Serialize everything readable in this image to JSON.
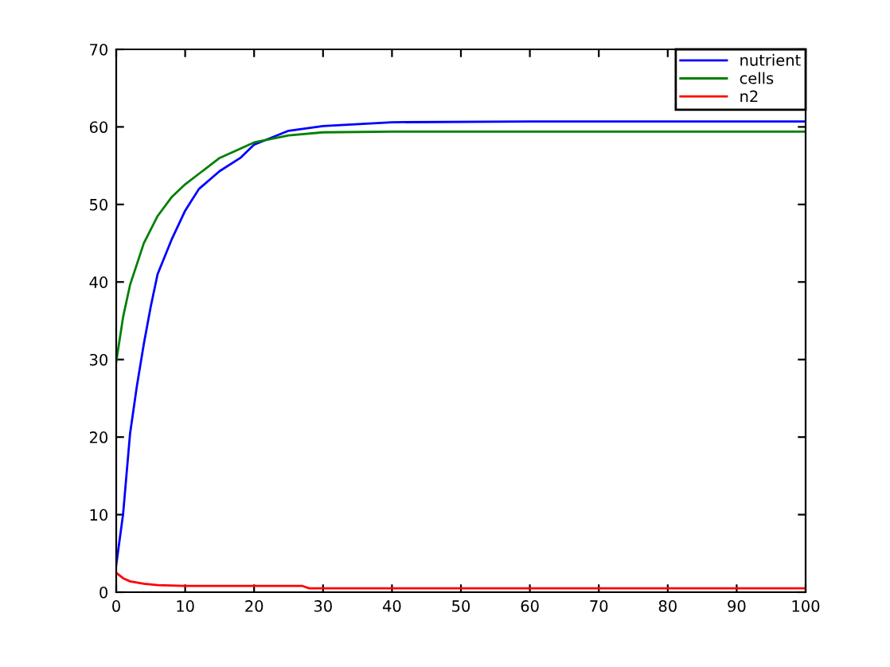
{
  "chart_data": {
    "type": "line",
    "xlim": [
      0,
      100
    ],
    "ylim": [
      0,
      70
    ],
    "xticks": [
      0,
      10,
      20,
      30,
      40,
      50,
      60,
      70,
      80,
      90,
      100
    ],
    "yticks": [
      0,
      10,
      20,
      30,
      40,
      50,
      60,
      70
    ],
    "grid": false,
    "legend": "top right",
    "series": [
      {
        "name": "nutrient",
        "color": "#0000ff",
        "x": [
          0,
          1,
          2,
          3,
          4,
          5,
          6,
          8,
          10,
          12,
          15,
          18,
          20,
          25,
          30,
          40,
          60,
          100
        ],
        "values": [
          3.5,
          10.1,
          20.4,
          26.6,
          32,
          36.8,
          41,
          45.4,
          49.2,
          52,
          54.3,
          56,
          57.7,
          59.5,
          60.1,
          60.6,
          60.7,
          60.7
        ]
      },
      {
        "name": "cells",
        "color": "#008000",
        "x": [
          0,
          1,
          2,
          3,
          4,
          6,
          8,
          10,
          15,
          20,
          25,
          30,
          40,
          100
        ],
        "values": [
          29.7,
          35.5,
          39.6,
          42.3,
          45,
          48.5,
          50.9,
          52.6,
          56,
          58,
          58.9,
          59.3,
          59.4,
          59.4
        ]
      },
      {
        "name": "n2",
        "color": "#ff0000",
        "x": [
          0,
          1,
          2,
          4,
          6,
          10,
          27,
          28,
          100
        ],
        "values": [
          2.5,
          1.8,
          1.4,
          1.1,
          0.9,
          0.8,
          0.8,
          0.5,
          0.5
        ]
      }
    ]
  }
}
